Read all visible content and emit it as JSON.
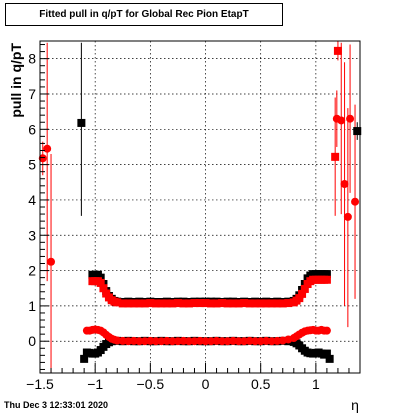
{
  "chart_data": {
    "type": "scatter",
    "title": "Fitted pull in q/pT for Global Rec Pion EtapT",
    "ylabel": "pull in q/pT",
    "xlabel": "η",
    "xlim": [
      -1.5,
      1.4
    ],
    "ylim": [
      -0.9,
      8.5
    ],
    "x_ticks": [
      -1.5,
      -1,
      -0.5,
      0,
      0.5,
      1
    ],
    "x_tick_labels": [
      "−1.5",
      "−1",
      "−0.5",
      "0",
      "0.5",
      "1"
    ],
    "y_ticks": [
      0,
      1,
      2,
      3,
      4,
      5,
      6,
      7,
      8
    ],
    "y_tick_labels": [
      "0",
      "1",
      "2",
      "3",
      "4",
      "5",
      "6",
      "7",
      "8"
    ],
    "grid": true,
    "series": [
      {
        "color": "#000000",
        "marker": "square",
        "points": [
          {
            "x": -1.125,
            "y": 6.18,
            "lo": 3.55,
            "hi": 8.45
          },
          {
            "x": 1.375,
            "y": 5.95,
            "lo": 5.7,
            "hi": 6.2
          },
          {
            "x": -1.025,
            "y": 1.88
          },
          {
            "x": -1.0,
            "y": 1.88
          },
          {
            "x": -0.975,
            "y": 1.88
          },
          {
            "x": -0.95,
            "y": 1.8
          },
          {
            "x": -0.925,
            "y": 1.62
          },
          {
            "x": -0.9,
            "y": 1.42
          },
          {
            "x": -0.875,
            "y": 1.28
          },
          {
            "x": -0.85,
            "y": 1.2
          },
          {
            "x": -0.825,
            "y": 1.14
          },
          {
            "x": -0.8,
            "y": 1.12
          },
          {
            "x": -0.75,
            "y": 1.11
          },
          {
            "x": -0.7,
            "y": 1.12
          },
          {
            "x": -0.65,
            "y": 1.11
          },
          {
            "x": -0.6,
            "y": 1.12
          },
          {
            "x": -0.55,
            "y": 1.11
          },
          {
            "x": -0.5,
            "y": 1.12
          },
          {
            "x": -0.45,
            "y": 1.11
          },
          {
            "x": -0.4,
            "y": 1.11
          },
          {
            "x": -0.35,
            "y": 1.12
          },
          {
            "x": -0.3,
            "y": 1.11
          },
          {
            "x": -0.25,
            "y": 1.12
          },
          {
            "x": -0.2,
            "y": 1.12
          },
          {
            "x": -0.15,
            "y": 1.11
          },
          {
            "x": -0.1,
            "y": 1.12
          },
          {
            "x": -0.05,
            "y": 1.12
          },
          {
            "x": 0.0,
            "y": 1.12
          },
          {
            "x": 0.05,
            "y": 1.12
          },
          {
            "x": 0.1,
            "y": 1.12
          },
          {
            "x": 0.15,
            "y": 1.11
          },
          {
            "x": 0.2,
            "y": 1.12
          },
          {
            "x": 0.25,
            "y": 1.12
          },
          {
            "x": 0.3,
            "y": 1.11
          },
          {
            "x": 0.35,
            "y": 1.12
          },
          {
            "x": 0.4,
            "y": 1.11
          },
          {
            "x": 0.45,
            "y": 1.12
          },
          {
            "x": 0.5,
            "y": 1.11
          },
          {
            "x": 0.55,
            "y": 1.12
          },
          {
            "x": 0.6,
            "y": 1.11
          },
          {
            "x": 0.65,
            "y": 1.12
          },
          {
            "x": 0.7,
            "y": 1.11
          },
          {
            "x": 0.75,
            "y": 1.12
          },
          {
            "x": 0.8,
            "y": 1.14
          },
          {
            "x": 0.825,
            "y": 1.2
          },
          {
            "x": 0.85,
            "y": 1.3
          },
          {
            "x": 0.875,
            "y": 1.45
          },
          {
            "x": 0.9,
            "y": 1.62
          },
          {
            "x": 0.925,
            "y": 1.78
          },
          {
            "x": 0.95,
            "y": 1.86
          },
          {
            "x": 0.975,
            "y": 1.9
          },
          {
            "x": 1.0,
            "y": 1.9
          },
          {
            "x": 1.025,
            "y": 1.9
          },
          {
            "x": 1.05,
            "y": 1.9
          },
          {
            "x": 1.075,
            "y": 1.9
          },
          {
            "x": 1.1,
            "y": 1.9
          },
          {
            "x": -1.1,
            "y": -0.5
          },
          {
            "x": -1.075,
            "y": -0.32
          },
          {
            "x": -1.05,
            "y": -0.33
          },
          {
            "x": -1.025,
            "y": -0.35
          },
          {
            "x": -1.0,
            "y": -0.35
          },
          {
            "x": -0.975,
            "y": -0.32
          },
          {
            "x": -0.95,
            "y": -0.25
          },
          {
            "x": -0.925,
            "y": -0.16
          },
          {
            "x": -0.9,
            "y": -0.08
          },
          {
            "x": -0.875,
            "y": -0.03
          },
          {
            "x": -0.85,
            "y": 0.0
          },
          {
            "x": -0.8,
            "y": 0.01
          },
          {
            "x": -0.75,
            "y": 0.0
          },
          {
            "x": -0.7,
            "y": 0.01
          },
          {
            "x": -0.65,
            "y": 0.0
          },
          {
            "x": -0.6,
            "y": 0.0
          },
          {
            "x": -0.55,
            "y": 0.01
          },
          {
            "x": -0.5,
            "y": 0.0
          },
          {
            "x": -0.45,
            "y": 0.0
          },
          {
            "x": -0.4,
            "y": 0.01
          },
          {
            "x": -0.35,
            "y": 0.0
          },
          {
            "x": -0.3,
            "y": 0.0
          },
          {
            "x": -0.25,
            "y": 0.01
          },
          {
            "x": -0.2,
            "y": 0.0
          },
          {
            "x": -0.15,
            "y": 0.0
          },
          {
            "x": -0.1,
            "y": 0.01
          },
          {
            "x": -0.05,
            "y": 0.0
          },
          {
            "x": 0.0,
            "y": 0.0
          },
          {
            "x": 0.05,
            "y": 0.0
          },
          {
            "x": 0.1,
            "y": 0.01
          },
          {
            "x": 0.15,
            "y": 0.0
          },
          {
            "x": 0.2,
            "y": 0.0
          },
          {
            "x": 0.25,
            "y": 0.01
          },
          {
            "x": 0.3,
            "y": 0.0
          },
          {
            "x": 0.35,
            "y": 0.0
          },
          {
            "x": 0.4,
            "y": 0.01
          },
          {
            "x": 0.45,
            "y": 0.0
          },
          {
            "x": 0.5,
            "y": 0.0
          },
          {
            "x": 0.55,
            "y": 0.01
          },
          {
            "x": 0.6,
            "y": 0.0
          },
          {
            "x": 0.65,
            "y": 0.0
          },
          {
            "x": 0.7,
            "y": 0.01
          },
          {
            "x": 0.75,
            "y": 0.0
          },
          {
            "x": 0.8,
            "y": -0.02
          },
          {
            "x": 0.825,
            "y": -0.06
          },
          {
            "x": 0.85,
            "y": -0.12
          },
          {
            "x": 0.875,
            "y": -0.2
          },
          {
            "x": 0.9,
            "y": -0.27
          },
          {
            "x": 0.925,
            "y": -0.32
          },
          {
            "x": 0.95,
            "y": -0.34
          },
          {
            "x": 0.975,
            "y": -0.35
          },
          {
            "x": 1.0,
            "y": -0.33
          },
          {
            "x": 1.025,
            "y": -0.32
          },
          {
            "x": 1.05,
            "y": -0.35
          },
          {
            "x": 1.075,
            "y": -0.38
          },
          {
            "x": 1.1,
            "y": -0.35
          },
          {
            "x": 1.125,
            "y": -0.5
          }
        ]
      },
      {
        "color": "#ff0000",
        "marker": "square",
        "points": [
          {
            "x": 1.175,
            "y": 5.22,
            "lo": 3.55,
            "hi": 6.9
          },
          {
            "x": 1.2,
            "y": 8.22,
            "lo": 7.95,
            "hi": 8.5
          },
          {
            "x": -1.025,
            "y": 1.7
          },
          {
            "x": -1.0,
            "y": 1.7
          },
          {
            "x": -0.975,
            "y": 1.7
          },
          {
            "x": -0.95,
            "y": 1.65
          },
          {
            "x": -0.925,
            "y": 1.5
          },
          {
            "x": -0.9,
            "y": 1.35
          },
          {
            "x": -0.875,
            "y": 1.24
          },
          {
            "x": -0.85,
            "y": 1.16
          },
          {
            "x": -0.825,
            "y": 1.12
          },
          {
            "x": -0.8,
            "y": 1.1
          },
          {
            "x": -0.75,
            "y": 1.07
          },
          {
            "x": -0.7,
            "y": 1.07
          },
          {
            "x": -0.65,
            "y": 1.07
          },
          {
            "x": -0.6,
            "y": 1.07
          },
          {
            "x": -0.55,
            "y": 1.07
          },
          {
            "x": -0.5,
            "y": 1.08
          },
          {
            "x": -0.45,
            "y": 1.07
          },
          {
            "x": -0.4,
            "y": 1.07
          },
          {
            "x": -0.35,
            "y": 1.07
          },
          {
            "x": -0.3,
            "y": 1.07
          },
          {
            "x": -0.25,
            "y": 1.08
          },
          {
            "x": -0.2,
            "y": 1.07
          },
          {
            "x": -0.15,
            "y": 1.07
          },
          {
            "x": -0.1,
            "y": 1.08
          },
          {
            "x": -0.05,
            "y": 1.08
          },
          {
            "x": 0.0,
            "y": 1.08
          },
          {
            "x": 0.05,
            "y": 1.07
          },
          {
            "x": 0.1,
            "y": 1.07
          },
          {
            "x": 0.15,
            "y": 1.08
          },
          {
            "x": 0.2,
            "y": 1.07
          },
          {
            "x": 0.25,
            "y": 1.07
          },
          {
            "x": 0.3,
            "y": 1.07
          },
          {
            "x": 0.35,
            "y": 1.08
          },
          {
            "x": 0.4,
            "y": 1.07
          },
          {
            "x": 0.45,
            "y": 1.07
          },
          {
            "x": 0.5,
            "y": 1.07
          },
          {
            "x": 0.55,
            "y": 1.07
          },
          {
            "x": 0.6,
            "y": 1.07
          },
          {
            "x": 0.65,
            "y": 1.07
          },
          {
            "x": 0.7,
            "y": 1.07
          },
          {
            "x": 0.75,
            "y": 1.08
          },
          {
            "x": 0.8,
            "y": 1.1
          },
          {
            "x": 0.825,
            "y": 1.15
          },
          {
            "x": 0.85,
            "y": 1.22
          },
          {
            "x": 0.875,
            "y": 1.34
          },
          {
            "x": 0.9,
            "y": 1.48
          },
          {
            "x": 0.925,
            "y": 1.62
          },
          {
            "x": 0.95,
            "y": 1.7
          },
          {
            "x": 0.975,
            "y": 1.74
          },
          {
            "x": 1.0,
            "y": 1.74
          },
          {
            "x": 1.025,
            "y": 1.74
          },
          {
            "x": 1.05,
            "y": 1.74
          },
          {
            "x": 1.075,
            "y": 1.74
          },
          {
            "x": 1.1,
            "y": 1.74
          }
        ]
      },
      {
        "color": "#ff0000",
        "marker": "circle",
        "points": [
          {
            "x": -1.475,
            "y": 5.18,
            "lo": 4.7,
            "hi": 5.65
          },
          {
            "x": -1.435,
            "y": 5.45,
            "lo": 1.7,
            "hi": 8.45
          },
          {
            "x": -1.4,
            "y": 2.25,
            "lo": -0.9,
            "hi": 5.3
          },
          {
            "x": 1.19,
            "y": 6.3,
            "lo": 5.5,
            "hi": 7.1
          },
          {
            "x": 1.23,
            "y": 6.25,
            "lo": 3.6,
            "hi": 8.45
          },
          {
            "x": 1.26,
            "y": 4.45,
            "lo": 1.0,
            "hi": 7.9
          },
          {
            "x": 1.29,
            "y": 3.52,
            "lo": 0.4,
            "hi": 6.6
          },
          {
            "x": 1.31,
            "y": 6.3,
            "lo": 4.2,
            "hi": 8.4
          },
          {
            "x": 1.355,
            "y": 3.95,
            "lo": 1.2,
            "hi": 6.7
          },
          {
            "x": -1.075,
            "y": 0.3
          },
          {
            "x": -1.05,
            "y": 0.3
          },
          {
            "x": -1.025,
            "y": 0.32
          },
          {
            "x": -1.0,
            "y": 0.33
          },
          {
            "x": -0.975,
            "y": 0.32
          },
          {
            "x": -0.95,
            "y": 0.3
          },
          {
            "x": -0.925,
            "y": 0.25
          },
          {
            "x": -0.9,
            "y": 0.18
          },
          {
            "x": -0.875,
            "y": 0.12
          },
          {
            "x": -0.85,
            "y": 0.07
          },
          {
            "x": -0.825,
            "y": 0.04
          },
          {
            "x": -0.8,
            "y": 0.02
          },
          {
            "x": -0.75,
            "y": 0.01
          },
          {
            "x": -0.7,
            "y": 0.0
          },
          {
            "x": -0.65,
            "y": 0.01
          },
          {
            "x": -0.6,
            "y": 0.0
          },
          {
            "x": -0.55,
            "y": 0.0
          },
          {
            "x": -0.5,
            "y": 0.01
          },
          {
            "x": -0.45,
            "y": 0.0
          },
          {
            "x": -0.4,
            "y": 0.0
          },
          {
            "x": -0.35,
            "y": 0.01
          },
          {
            "x": -0.3,
            "y": 0.0
          },
          {
            "x": -0.25,
            "y": 0.0
          },
          {
            "x": -0.2,
            "y": 0.01
          },
          {
            "x": -0.15,
            "y": 0.0
          },
          {
            "x": -0.1,
            "y": 0.0
          },
          {
            "x": -0.05,
            "y": 0.01
          },
          {
            "x": 0.0,
            "y": 0.0
          },
          {
            "x": 0.05,
            "y": 0.0
          },
          {
            "x": 0.1,
            "y": 0.01
          },
          {
            "x": 0.15,
            "y": 0.0
          },
          {
            "x": 0.2,
            "y": 0.0
          },
          {
            "x": 0.25,
            "y": 0.01
          },
          {
            "x": 0.3,
            "y": 0.0
          },
          {
            "x": 0.35,
            "y": 0.0
          },
          {
            "x": 0.4,
            "y": 0.01
          },
          {
            "x": 0.45,
            "y": 0.0
          },
          {
            "x": 0.5,
            "y": 0.0
          },
          {
            "x": 0.55,
            "y": 0.01
          },
          {
            "x": 0.6,
            "y": 0.0
          },
          {
            "x": 0.65,
            "y": 0.01
          },
          {
            "x": 0.7,
            "y": 0.02
          },
          {
            "x": 0.75,
            "y": 0.05
          },
          {
            "x": 0.8,
            "y": 0.09
          },
          {
            "x": 0.825,
            "y": 0.14
          },
          {
            "x": 0.85,
            "y": 0.19
          },
          {
            "x": 0.875,
            "y": 0.24
          },
          {
            "x": 0.9,
            "y": 0.28
          },
          {
            "x": 0.925,
            "y": 0.3
          },
          {
            "x": 0.95,
            "y": 0.31
          },
          {
            "x": 0.975,
            "y": 0.32
          },
          {
            "x": 1.0,
            "y": 0.3
          },
          {
            "x": 1.025,
            "y": 0.3
          },
          {
            "x": 1.05,
            "y": 0.32
          },
          {
            "x": 1.075,
            "y": 0.3
          },
          {
            "x": 1.1,
            "y": 0.3
          }
        ]
      }
    ]
  },
  "footer": {
    "date": "Thu Dec  3 12:33:01 2020"
  }
}
